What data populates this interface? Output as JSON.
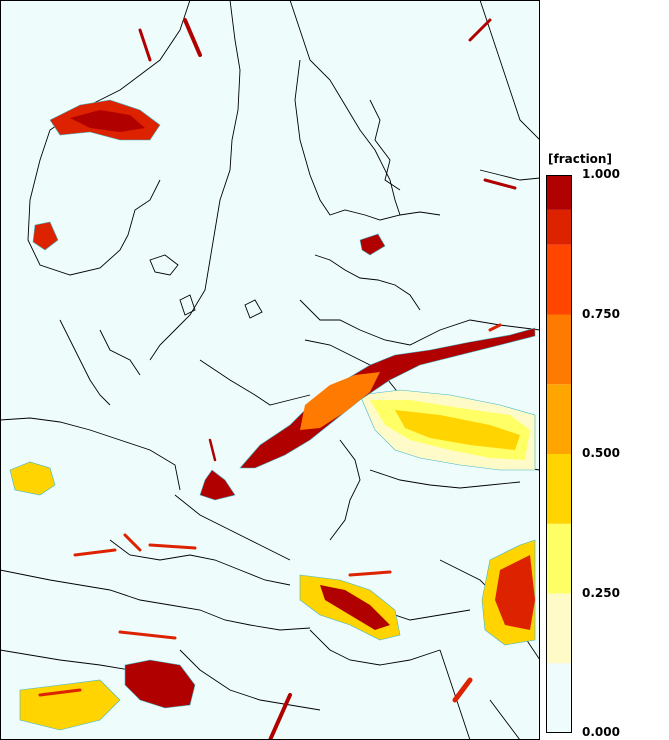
{
  "legend": {
    "title": "[fraction]",
    "tick_labels": [
      "1.000",
      "0.750",
      "0.500",
      "0.250",
      "0.000"
    ],
    "tick_values": [
      1.0,
      0.75,
      0.5,
      0.25,
      0.0
    ],
    "bins": [
      {
        "from": 0.0,
        "to": 0.125,
        "color": "#eefcfc"
      },
      {
        "from": 0.125,
        "to": 0.25,
        "color": "#fffbc8"
      },
      {
        "from": 0.25,
        "to": 0.375,
        "color": "#ffff66"
      },
      {
        "from": 0.375,
        "to": 0.5,
        "color": "#ffd400"
      },
      {
        "from": 0.5,
        "to": 0.625,
        "color": "#ffa500"
      },
      {
        "from": 0.625,
        "to": 0.75,
        "color": "#ff7a00"
      },
      {
        "from": 0.75,
        "to": 0.875,
        "color": "#ff4500"
      },
      {
        "from": 0.875,
        "to": 0.9375,
        "color": "#dd2200"
      },
      {
        "from": 0.9375,
        "to": 1.0,
        "color": "#b00000"
      }
    ]
  },
  "colors": {
    "background": "#eefcfc",
    "borders": "#000000",
    "contour": "#3fb6c8"
  }
}
